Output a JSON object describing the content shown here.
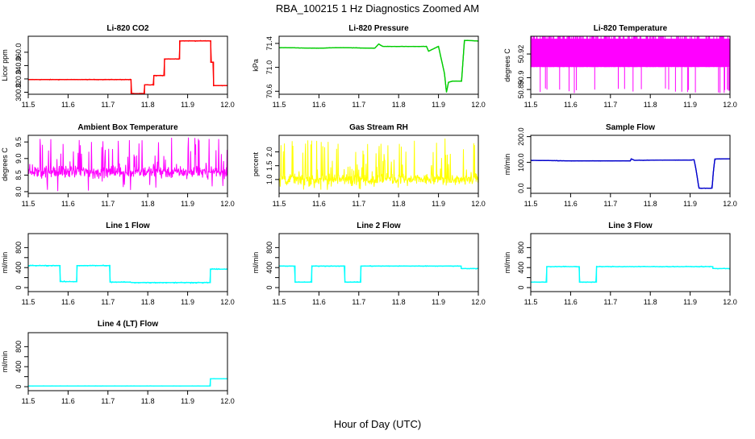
{
  "figure": {
    "title": "RBA_100215  1 Hz Diagnostics Zoomed AM",
    "xlabel": "Hour of Day (UTC)"
  },
  "chart_data": [
    {
      "type": "line",
      "title": "Li-820 CO2",
      "ylabel": "Licor ppm",
      "color": "#ff0000",
      "xlim": [
        11.5,
        12.0
      ],
      "xticks": [
        11.5,
        11.6,
        11.7,
        11.8,
        11.9,
        12.0
      ],
      "ylim": [
        297,
        384
      ],
      "yticks": [
        300,
        320,
        340,
        360
      ],
      "noise": 0.8,
      "x": [
        11.5,
        11.758,
        11.758,
        11.792,
        11.792,
        11.815,
        11.815,
        11.842,
        11.842,
        11.88,
        11.88,
        11.958,
        11.958,
        11.965,
        11.965,
        12.0
      ],
      "y": [
        319,
        319,
        298,
        298,
        311,
        311,
        325,
        325,
        350,
        350,
        377,
        377,
        345,
        345,
        310,
        310
      ]
    },
    {
      "type": "line",
      "title": "Li-820 Pressure",
      "ylabel": "kPa",
      "color": "#00cc00",
      "xlim": [
        11.5,
        12.0
      ],
      "xticks": [
        11.5,
        11.6,
        11.7,
        11.8,
        11.9,
        12.0
      ],
      "ylim": [
        70.55,
        71.52
      ],
      "yticks": [
        70.6,
        71.0,
        71.4
      ],
      "noise": 0.005,
      "x": [
        11.5,
        11.6,
        11.65,
        11.74,
        11.75,
        11.76,
        11.87,
        11.875,
        11.9,
        11.915,
        11.92,
        11.925,
        11.935,
        11.958,
        11.965,
        11.97,
        12.0
      ],
      "y": [
        71.33,
        71.32,
        71.33,
        71.32,
        71.39,
        71.35,
        71.35,
        71.27,
        71.35,
        70.9,
        70.58,
        70.75,
        70.77,
        70.77,
        71.45,
        71.45,
        71.44
      ]
    },
    {
      "type": "spiky",
      "title": "Li-820 Temperature",
      "ylabel": "degrees C",
      "color": "#ff00ff",
      "xlim": [
        11.5,
        12.0
      ],
      "xticks": [
        11.5,
        11.6,
        11.7,
        11.8,
        11.9,
        12.0
      ],
      "ylim": [
        50.886,
        50.935
      ],
      "yticks": [
        50.89,
        50.9,
        50.92
      ],
      "ytick_labels": [
        "50.89",
        "50.9",
        "50.92"
      ],
      "low": 50.909,
      "high": 50.933,
      "min": 50.887,
      "density": 0.45
    },
    {
      "type": "noise",
      "title": "Ambient Box Temperature",
      "ylabel": "degrees C",
      "color": "#ff00ff",
      "xlim": [
        11.5,
        12.0
      ],
      "xticks": [
        11.5,
        11.6,
        11.7,
        11.8,
        11.9,
        12.0
      ],
      "ylim": [
        7.95,
        9.7
      ],
      "yticks": [
        8.0,
        8.5,
        9.0,
        9.5
      ],
      "center": 8.6,
      "band": 0.2,
      "spike_max": 9.65,
      "spike_min": 7.98
    },
    {
      "type": "noise",
      "title": "Gas Stream RH",
      "ylabel": "percent",
      "color": "#ffff00",
      "xlim": [
        11.5,
        12.0
      ],
      "xticks": [
        11.5,
        11.6,
        11.7,
        11.8,
        11.9,
        12.0
      ],
      "ylim": [
        0.5,
        2.6
      ],
      "yticks": [
        1.0,
        1.5,
        2.0
      ],
      "center": 1.0,
      "band": 0.22,
      "spike_max": 2.5,
      "spike_min": 0.62
    },
    {
      "type": "line",
      "title": "Sample Flow",
      "ylabel": "ml/min",
      "color": "#0000cc",
      "xlim": [
        11.5,
        12.0
      ],
      "xticks": [
        11.5,
        11.6,
        11.7,
        11.8,
        11.9,
        12.0
      ],
      "ylim": [
        -20,
        205
      ],
      "yticks": [
        0,
        100,
        200
      ],
      "noise": 1.2,
      "x": [
        11.5,
        11.6,
        11.75,
        11.752,
        11.76,
        11.9,
        11.91,
        11.915,
        11.922,
        11.955,
        11.958,
        11.962,
        12.0
      ],
      "y": [
        108,
        106,
        106,
        114,
        108,
        109,
        110,
        70,
        0,
        0,
        60,
        113,
        114
      ]
    },
    {
      "type": "line",
      "title": "Line 1 Flow",
      "ylabel": "ml/min",
      "color": "#00ffff",
      "xlim": [
        11.5,
        12.0
      ],
      "xticks": [
        11.5,
        11.6,
        11.7,
        11.8,
        11.9,
        12.0
      ],
      "ylim": [
        -80,
        1080
      ],
      "yticks": [
        0,
        200,
        400,
        600,
        800
      ],
      "ytick_labels": [
        "0",
        "400",
        "800"
      ],
      "noise": 18,
      "x": [
        11.5,
        11.58,
        11.58,
        11.622,
        11.622,
        11.705,
        11.705,
        11.755,
        11.76,
        11.957,
        11.957,
        12.0
      ],
      "y": [
        440,
        440,
        120,
        120,
        440,
        440,
        110,
        110,
        100,
        100,
        370,
        370
      ]
    },
    {
      "type": "line",
      "title": "Line 2 Flow",
      "ylabel": "ml/min",
      "color": "#00ffff",
      "xlim": [
        11.5,
        12.0
      ],
      "xticks": [
        11.5,
        11.6,
        11.7,
        11.8,
        11.9,
        12.0
      ],
      "ylim": [
        -80,
        1080
      ],
      "yticks": [
        0,
        200,
        400,
        600,
        800
      ],
      "ytick_labels": [
        "0",
        "400",
        "800"
      ],
      "noise": 12,
      "x": [
        11.5,
        11.54,
        11.54,
        11.582,
        11.582,
        11.665,
        11.665,
        11.705,
        11.705,
        11.957,
        11.957,
        12.0
      ],
      "y": [
        430,
        430,
        110,
        110,
        430,
        430,
        110,
        110,
        430,
        430,
        380,
        380
      ]
    },
    {
      "type": "line",
      "title": "Line 3 Flow",
      "ylabel": "ml/min",
      "color": "#00ffff",
      "xlim": [
        11.5,
        12.0
      ],
      "xticks": [
        11.5,
        11.6,
        11.7,
        11.8,
        11.9,
        12.0
      ],
      "ylim": [
        -80,
        1080
      ],
      "yticks": [
        0,
        200,
        400,
        600,
        800
      ],
      "ytick_labels": [
        "0",
        "400",
        "800"
      ],
      "noise": 12,
      "x": [
        11.5,
        11.54,
        11.54,
        11.622,
        11.622,
        11.665,
        11.665,
        11.957,
        11.957,
        12.0
      ],
      "y": [
        110,
        110,
        420,
        420,
        110,
        110,
        420,
        420,
        380,
        380
      ]
    },
    {
      "type": "line",
      "title": "Line 4 (LT) Flow",
      "ylabel": "ml/min",
      "color": "#00ffff",
      "xlim": [
        11.5,
        12.0
      ],
      "xticks": [
        11.5,
        11.6,
        11.7,
        11.8,
        11.9,
        12.0
      ],
      "ylim": [
        -80,
        1080
      ],
      "yticks": [
        0,
        200,
        400,
        600,
        800
      ],
      "ytick_labels": [
        "0",
        "400",
        "800"
      ],
      "noise": 2,
      "x": [
        11.5,
        11.957,
        11.957,
        12.0
      ],
      "y": [
        15,
        15,
        160,
        160
      ]
    }
  ]
}
